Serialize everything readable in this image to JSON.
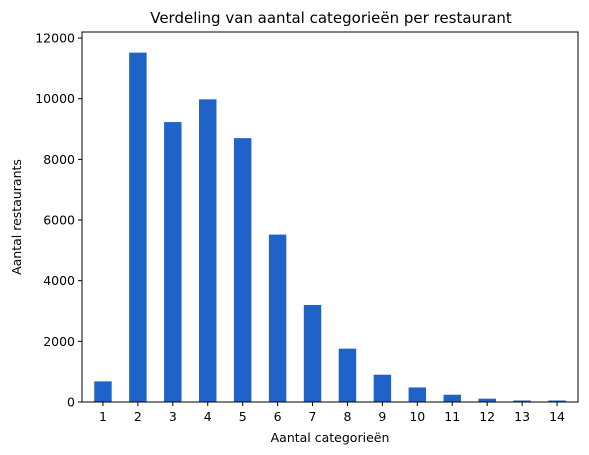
{
  "chart_data": {
    "type": "bar",
    "title": "Verdeling van aantal categorieën per restaurant",
    "xlabel": "Aantal categorieën",
    "ylabel": "Aantal restaurants",
    "categories": [
      "1",
      "2",
      "3",
      "4",
      "5",
      "6",
      "7",
      "8",
      "9",
      "10",
      "11",
      "12",
      "13",
      "14"
    ],
    "values": [
      680,
      11520,
      9230,
      9980,
      8700,
      5520,
      3200,
      1760,
      900,
      480,
      240,
      110,
      50,
      50
    ],
    "ylim": [
      0,
      12200
    ],
    "yticks": [
      0,
      2000,
      4000,
      6000,
      8000,
      10000,
      12000
    ],
    "grid": false,
    "bar_color": "#2063c8"
  }
}
